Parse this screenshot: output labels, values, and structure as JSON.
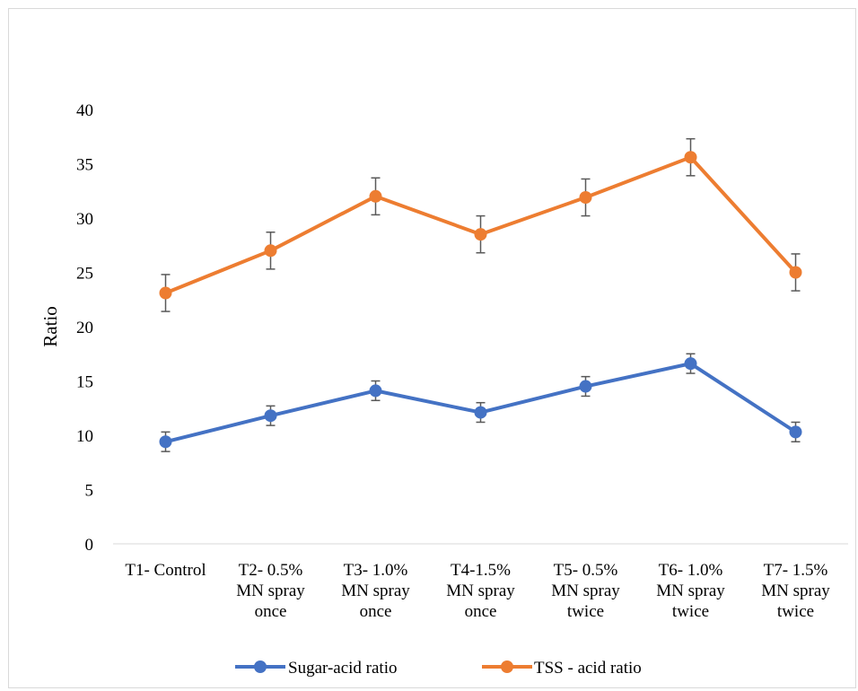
{
  "chart_data": {
    "type": "line",
    "title": "",
    "xlabel": "",
    "ylabel": "Ratio",
    "ylim": [
      0,
      40
    ],
    "yticks": [
      0,
      5,
      10,
      15,
      20,
      25,
      30,
      35,
      40
    ],
    "grid": false,
    "legend_position": "bottom",
    "categories": [
      [
        "T1- Control"
      ],
      [
        "T2- 0.5%",
        "MN spray",
        "once"
      ],
      [
        "T3- 1.0%",
        "MN spray",
        "once"
      ],
      [
        "T4-1.5%",
        "MN spray",
        "once"
      ],
      [
        "T5- 0.5%",
        "MN spray",
        "twice"
      ],
      [
        "T6- 1.0%",
        "MN spray",
        "twice"
      ],
      [
        "T7- 1.5%",
        "MN spray",
        "twice"
      ]
    ],
    "series": [
      {
        "name": "Sugar-acid ratio",
        "color": "#4472C4",
        "values": [
          9.4,
          11.8,
          14.1,
          12.1,
          14.5,
          16.6,
          10.3
        ],
        "error": [
          0.9,
          0.9,
          0.9,
          0.9,
          0.9,
          0.9,
          0.9
        ]
      },
      {
        "name": "TSS - acid ratio",
        "color": "#ED7D31",
        "values": [
          23.1,
          27.0,
          32.0,
          28.5,
          31.9,
          35.6,
          25.0
        ],
        "error": [
          1.7,
          1.7,
          1.7,
          1.7,
          1.7,
          1.7,
          1.7
        ]
      }
    ]
  }
}
